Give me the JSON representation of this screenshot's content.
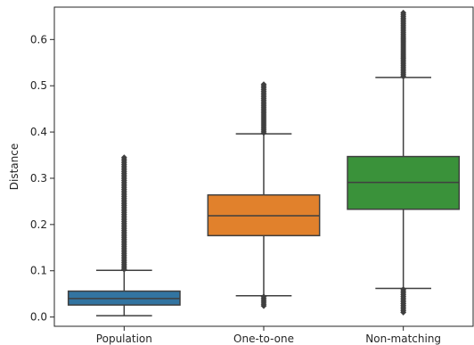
{
  "chart_data": {
    "type": "box",
    "title": "",
    "xlabel": "",
    "ylabel": "Distance",
    "ylim": [
      -0.02,
      0.67
    ],
    "yticks": [
      0.0,
      0.1,
      0.2,
      0.3,
      0.4,
      0.5,
      0.6
    ],
    "ytick_labels": [
      "0.0",
      "0.1",
      "0.2",
      "0.3",
      "0.4",
      "0.5",
      "0.6"
    ],
    "grid": false,
    "categories": [
      "Population",
      "One-to-one",
      "Non-matching"
    ],
    "boxes": [
      {
        "category": "Population",
        "color": "#3274a1",
        "whisker_low": 0.003,
        "q1": 0.026,
        "median": 0.04,
        "q3": 0.056,
        "whisker_high": 0.101,
        "outliers_high_range": [
          0.103,
          0.345
        ],
        "outliers_low_range": null
      },
      {
        "category": "One-to-one",
        "color": "#e1812c",
        "whisker_low": 0.046,
        "q1": 0.176,
        "median": 0.219,
        "q3": 0.264,
        "whisker_high": 0.396,
        "outliers_high_range": [
          0.398,
          0.503
        ],
        "outliers_low_range": [
          0.024,
          0.044
        ]
      },
      {
        "category": "Non-matching",
        "color": "#3a923a",
        "whisker_low": 0.062,
        "q1": 0.233,
        "median": 0.291,
        "q3": 0.347,
        "whisker_high": 0.518,
        "outliers_high_range": [
          0.52,
          0.658
        ],
        "outliers_low_range": [
          0.01,
          0.06
        ]
      }
    ]
  }
}
